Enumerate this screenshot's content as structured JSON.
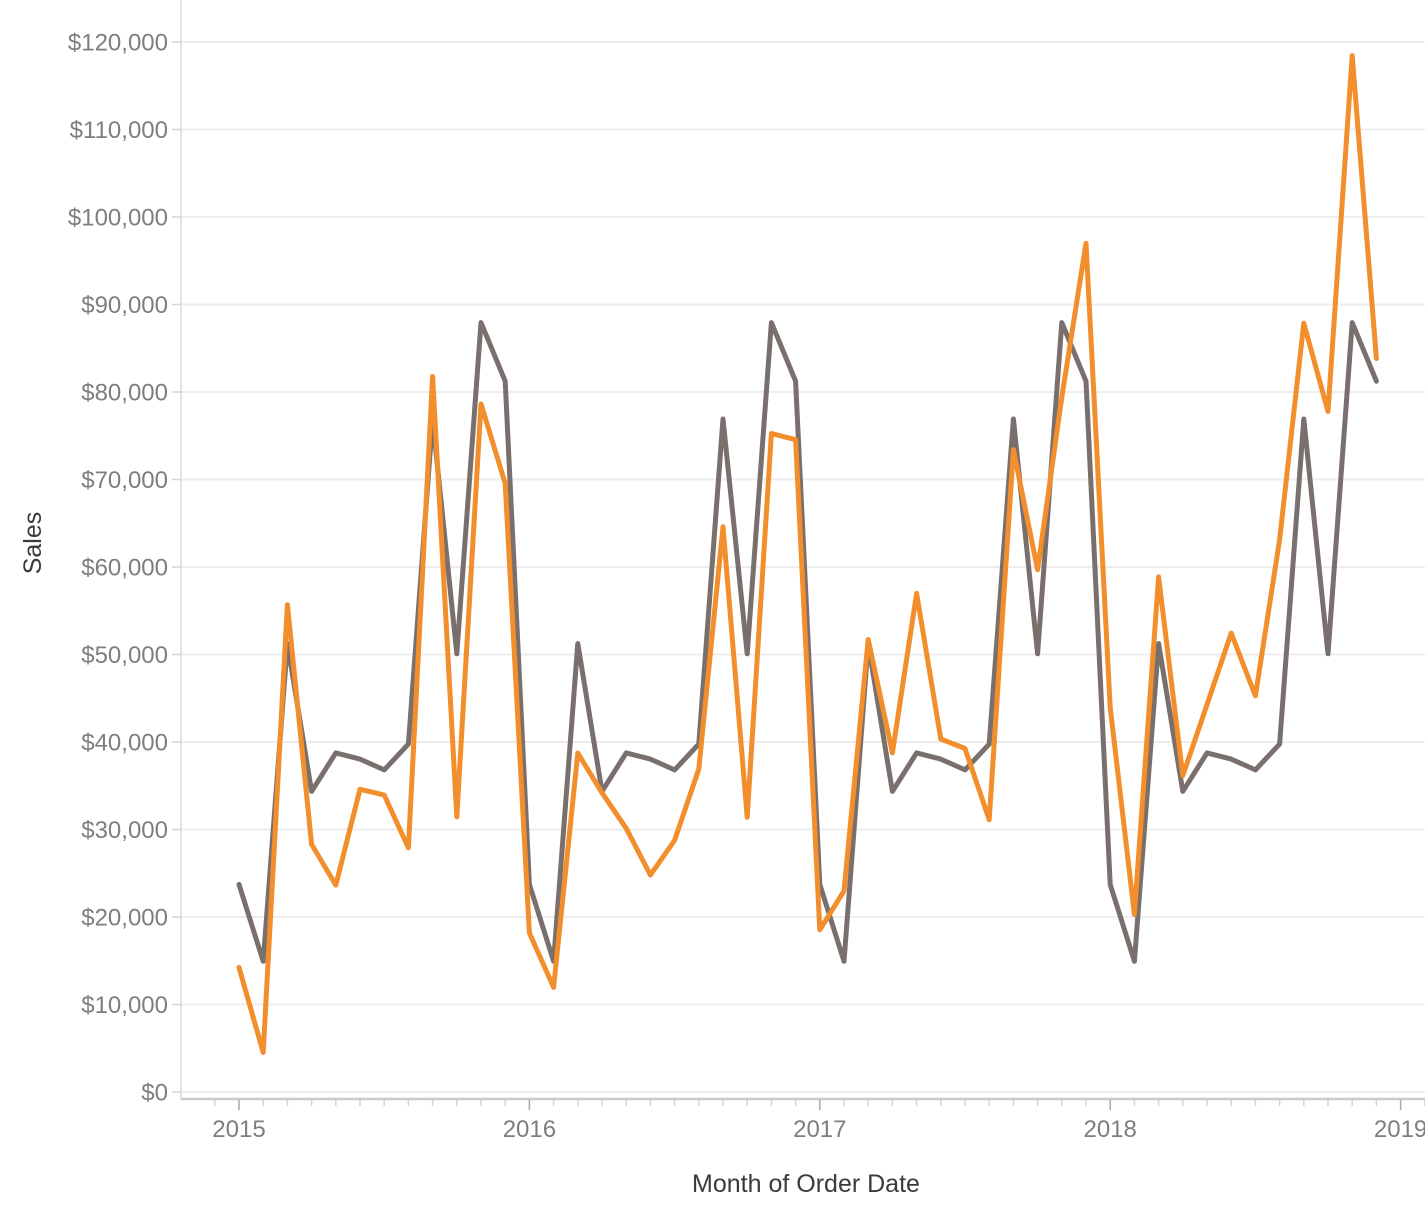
{
  "chart_data": {
    "type": "line",
    "title": "",
    "xlabel": "Month of Order Date",
    "ylabel": "Sales",
    "grid": "horizontal",
    "legend": "none",
    "ylim": [
      0,
      125000
    ],
    "x_tick_years": [
      "2015",
      "2016",
      "2017",
      "2018",
      "2019"
    ],
    "y_ticks": [
      {
        "value": 0,
        "label": "$0"
      },
      {
        "value": 10000,
        "label": "$10,000"
      },
      {
        "value": 20000,
        "label": "$20,000"
      },
      {
        "value": 30000,
        "label": "$30,000"
      },
      {
        "value": 40000,
        "label": "$40,000"
      },
      {
        "value": 50000,
        "label": "$50,000"
      },
      {
        "value": 60000,
        "label": "$60,000"
      },
      {
        "value": 70000,
        "label": "$70,000"
      },
      {
        "value": 80000,
        "label": "$80,000"
      },
      {
        "value": 90000,
        "label": "$90,000"
      },
      {
        "value": 100000,
        "label": "$100,000"
      },
      {
        "value": 110000,
        "label": "$110,000"
      },
      {
        "value": 120000,
        "label": "$120,000"
      }
    ],
    "months": [
      "2015-01",
      "2015-02",
      "2015-03",
      "2015-04",
      "2015-05",
      "2015-06",
      "2015-07",
      "2015-08",
      "2015-09",
      "2015-10",
      "2015-11",
      "2015-12",
      "2016-01",
      "2016-02",
      "2016-03",
      "2016-04",
      "2016-05",
      "2016-06",
      "2016-07",
      "2016-08",
      "2016-09",
      "2016-10",
      "2016-11",
      "2016-12",
      "2017-01",
      "2017-02",
      "2017-03",
      "2017-04",
      "2017-05",
      "2017-06",
      "2017-07",
      "2017-08",
      "2017-09",
      "2017-10",
      "2017-11",
      "2017-12",
      "2018-01",
      "2018-02",
      "2018-03",
      "2018-04",
      "2018-05",
      "2018-06",
      "2018-07",
      "2018-08",
      "2018-09",
      "2018-10",
      "2018-11",
      "2018-12"
    ],
    "series": [
      {
        "id": "gray",
        "color": "#79706E",
        "values": [
          23731,
          14938,
          51251,
          34351,
          38757,
          38045,
          36809,
          39761,
          76913,
          50081,
          87936,
          81229,
          23731,
          14938,
          51251,
          34351,
          38757,
          38045,
          36809,
          39761,
          76913,
          50081,
          87936,
          81229,
          23731,
          14938,
          51251,
          34351,
          38757,
          38045,
          36809,
          39761,
          76913,
          50081,
          87936,
          81229,
          23731,
          14938,
          51251,
          34351,
          38757,
          38045,
          36809,
          39761,
          76913,
          50081,
          87936,
          81229
        ]
      },
      {
        "id": "orange",
        "color": "#F28E2B",
        "values": [
          14237,
          4520,
          55691,
          28295,
          23648,
          34595,
          33946,
          27909,
          81777,
          31453,
          78629,
          69546,
          18174,
          11951,
          38726,
          34195,
          30132,
          24797,
          28765,
          36898,
          64596,
          31405,
          75253,
          74543,
          18542,
          22979,
          51715,
          38750,
          56988,
          40344,
          39262,
          31115,
          73410,
          59687,
          79412,
          96999,
          43971,
          20301,
          58872,
          36164,
          44261,
          52442,
          45264,
          63121,
          87867,
          77777,
          118448,
          83829
        ]
      }
    ]
  },
  "colors": {
    "background": "#FFFFFF",
    "gridline": "#EDEDED",
    "axis_line_bottom": "#C9C9C9",
    "axis_line_left": "#D9D9D9",
    "tick_minor": "#D4D4D4",
    "tick_major": "#A9A9A9",
    "tick_label": "#7E7E7E",
    "axis_title": "#3A3A3A"
  }
}
